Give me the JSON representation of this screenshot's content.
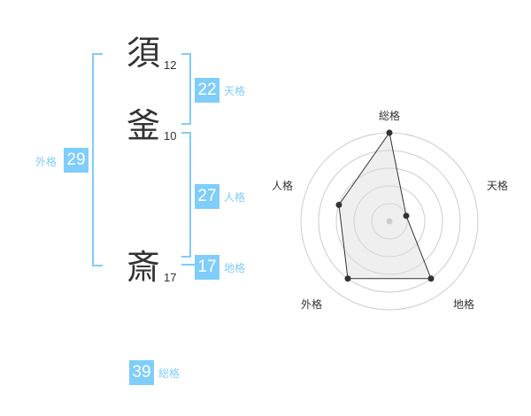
{
  "name": {
    "chars": [
      {
        "char": "須",
        "strokes": "12"
      },
      {
        "char": "釜",
        "strokes": "10"
      },
      {
        "char": "斎",
        "strokes": "17"
      }
    ]
  },
  "kaku": {
    "tenkaku": {
      "value": "22",
      "label": "天格"
    },
    "jinkaku": {
      "value": "27",
      "label": "人格"
    },
    "chikaku": {
      "value": "17",
      "label": "地格"
    },
    "gaikaku": {
      "value": "29",
      "label": "外格"
    },
    "soukaku": {
      "value": "39",
      "label": "総格"
    }
  },
  "colors": {
    "accent": "#7fcdfa"
  },
  "chart_data": {
    "type": "radar",
    "axes": [
      "総格",
      "天格",
      "地格",
      "外格",
      "人格"
    ],
    "values": [
      5,
      1,
      4,
      4,
      3
    ],
    "range": [
      0,
      5
    ],
    "rings": 5
  }
}
